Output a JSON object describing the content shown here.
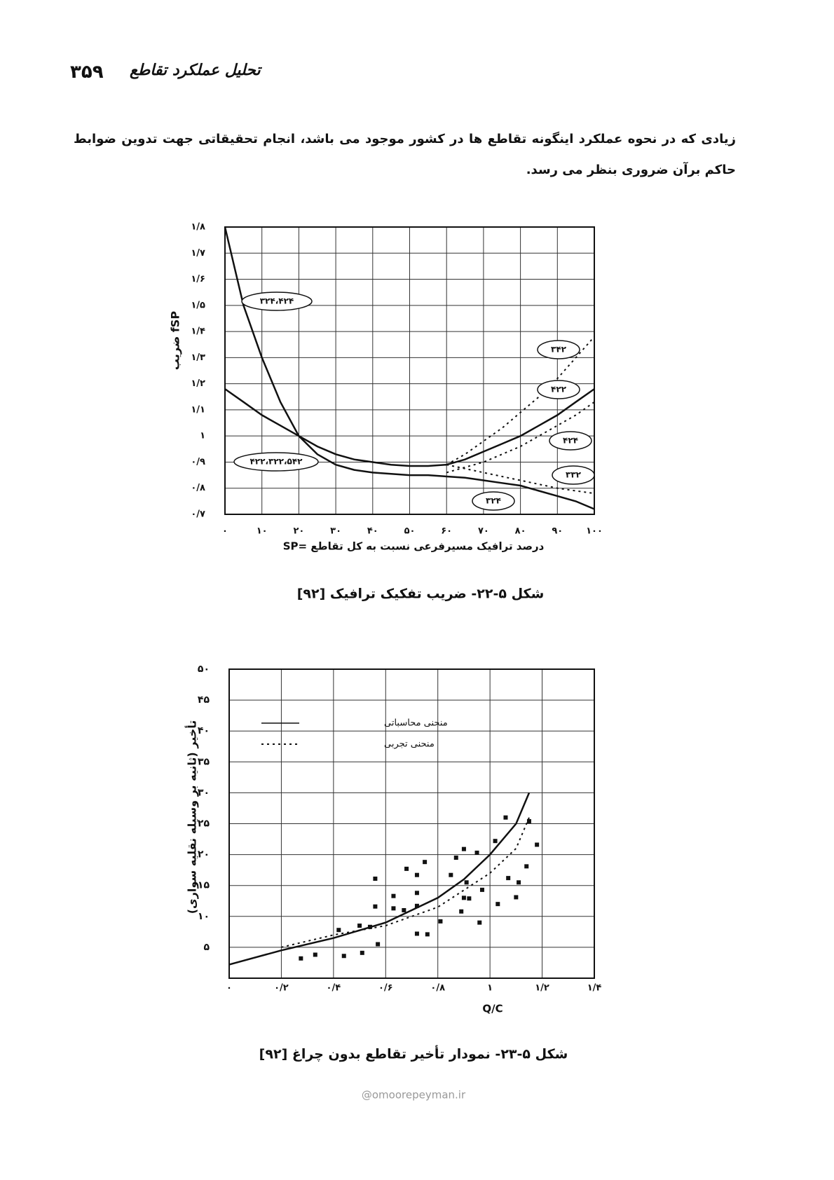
{
  "header": {
    "page_number": "۳۵۹",
    "title": "تحلیل عملکرد تقاطع"
  },
  "paragraph": [
    "زیادی که در نحوه عملکرد اینگونه تقاطع ها در کشور موجود می باشد، انجام تحقیقاتی جهت تدوین ضوابط",
    "حاکم برآن ضروری بنظر می رسد."
  ],
  "chart_data": [
    {
      "type": "line",
      "y_label": "ضریب fSP",
      "x_label": "SP= درصد ترافیک مسیرفرعی نسبت به کل تقاطع",
      "caption": "شکل ۵-۲۲- ضریب تفکیک ترافیک [۹۲]",
      "grid": true,
      "xlim": [
        0,
        100
      ],
      "ylim": [
        0.7,
        1.8
      ],
      "xticks": [
        {
          "value": 0,
          "label": "۰"
        },
        {
          "value": 10,
          "label": "۱۰"
        },
        {
          "value": 20,
          "label": "۲۰"
        },
        {
          "value": 30,
          "label": "۳۰"
        },
        {
          "value": 40,
          "label": "۴۰"
        },
        {
          "value": 50,
          "label": "۵۰"
        },
        {
          "value": 60,
          "label": "۶۰"
        },
        {
          "value": 70,
          "label": "۷۰"
        },
        {
          "value": 80,
          "label": "۸۰"
        },
        {
          "value": 90,
          "label": "۹۰"
        },
        {
          "value": 100,
          "label": "۱۰۰"
        }
      ],
      "yticks": [
        {
          "value": 0.7,
          "label": "۰/۷"
        },
        {
          "value": 0.8,
          "label": "۰/۸"
        },
        {
          "value": 0.9,
          "label": "۰/۹"
        },
        {
          "value": 1,
          "label": "۱"
        },
        {
          "value": 1.1,
          "label": "۱/۱"
        },
        {
          "value": 1.2,
          "label": "۱/۲"
        },
        {
          "value": 1.3,
          "label": "۱/۳"
        },
        {
          "value": 1.4,
          "label": "۱/۴"
        },
        {
          "value": 1.5,
          "label": "۱/۵"
        },
        {
          "value": 1.6,
          "label": "۱/۶"
        },
        {
          "value": 1.7,
          "label": "۱/۷"
        },
        {
          "value": 1.8,
          "label": "۱/۸"
        }
      ],
      "x": [
        0,
        5,
        10,
        15,
        20,
        25,
        30,
        35,
        40,
        45,
        50,
        55,
        60,
        65,
        70,
        75,
        80,
        85,
        90,
        95,
        100
      ],
      "series": [
        {
          "name": "۳۲۴،۴۲۴",
          "color": "#111111",
          "style": "solid",
          "values": [
            1.8,
            1.5,
            1.3,
            1.13,
            1.0,
            0.93,
            0.89,
            0.87,
            0.86,
            0.855,
            0.85,
            0.85,
            0.845,
            null,
            null,
            null,
            null,
            null,
            null,
            null,
            null
          ]
        },
        {
          "name": "۴۲۲،۳۲۲،۵۴۲",
          "color": "#111111",
          "style": "solid",
          "values": [
            1.18,
            1.13,
            1.08,
            1.04,
            1.0,
            0.96,
            0.93,
            0.91,
            0.9,
            0.89,
            0.885,
            0.885,
            0.89,
            null,
            null,
            null,
            null,
            null,
            null,
            null,
            null
          ]
        },
        {
          "name": "۳۴۲",
          "color": "#111111",
          "style": "dotted",
          "values": [
            null,
            null,
            null,
            null,
            null,
            null,
            null,
            null,
            null,
            null,
            null,
            null,
            0.89,
            0.93,
            0.98,
            1.03,
            1.09,
            1.15,
            1.22,
            1.3,
            1.38
          ]
        },
        {
          "name": "۴۲۲",
          "color": "#111111",
          "style": "solid",
          "values": [
            null,
            null,
            null,
            null,
            null,
            null,
            null,
            null,
            null,
            null,
            null,
            null,
            0.89,
            0.91,
            0.94,
            0.97,
            1.0,
            1.04,
            1.08,
            1.13,
            1.18
          ]
        },
        {
          "name": "۴۲۴",
          "color": "#111111",
          "style": "dotted",
          "values": [
            null,
            null,
            null,
            null,
            null,
            null,
            null,
            null,
            null,
            null,
            null,
            null,
            0.86,
            0.88,
            0.9,
            0.93,
            0.96,
            1.0,
            1.04,
            1.08,
            1.13
          ]
        },
        {
          "name": "۳۳۲",
          "color": "#111111",
          "style": "dotted",
          "values": [
            null,
            null,
            null,
            null,
            null,
            null,
            null,
            null,
            null,
            null,
            null,
            null,
            0.89,
            0.875,
            0.86,
            0.845,
            0.83,
            0.815,
            0.8,
            0.79,
            0.78
          ]
        },
        {
          "name": "۳۲۴",
          "color": "#111111",
          "style": "solid",
          "values": [
            null,
            null,
            null,
            null,
            null,
            null,
            null,
            null,
            null,
            null,
            null,
            null,
            0.845,
            0.84,
            0.83,
            0.82,
            0.81,
            0.79,
            0.77,
            0.75,
            0.72
          ]
        }
      ]
    },
    {
      "type": "line",
      "y_label": "تأخیر (ثانیه بر وسیله نقلیه سواری)",
      "x_label": "Q/C",
      "caption": "شکل ۵-۲۳- نمودار تأخیر تقاطع بدون چراغ [۹۲]",
      "grid": true,
      "xlim": [
        0,
        1.4
      ],
      "ylim": [
        0,
        50
      ],
      "xticks": [
        {
          "value": 0,
          "label": "۰"
        },
        {
          "value": 0.2,
          "label": "۰/۲"
        },
        {
          "value": 0.4,
          "label": "۰/۴"
        },
        {
          "value": 0.6,
          "label": "۰/۶"
        },
        {
          "value": 0.8,
          "label": "۰/۸"
        },
        {
          "value": 1,
          "label": "۱"
        },
        {
          "value": 1.2,
          "label": "۱/۲"
        },
        {
          "value": 1.4,
          "label": "۱/۴"
        }
      ],
      "yticks": [
        {
          "value": 5,
          "label": "۵"
        },
        {
          "value": 10,
          "label": "۱۰"
        },
        {
          "value": 15,
          "label": "۱۵"
        },
        {
          "value": 20,
          "label": "۲۰"
        },
        {
          "value": 25,
          "label": "۲۵"
        },
        {
          "value": 30,
          "label": "۳۰"
        },
        {
          "value": 35,
          "label": "۳۵"
        },
        {
          "value": 40,
          "label": "۴۰"
        },
        {
          "value": 45,
          "label": "۴۵"
        },
        {
          "value": 50,
          "label": "۵۰"
        }
      ],
      "series": [
        {
          "name": "منحنی محاسباتی",
          "color": "#111111",
          "style": "solid",
          "x": [
            0,
            0.2,
            0.4,
            0.6,
            0.8,
            0.9,
            1.0,
            1.1,
            1.15
          ],
          "values": [
            2.2,
            4.5,
            6.5,
            9,
            13,
            16,
            20,
            25,
            30
          ]
        },
        {
          "name": "منحنی تجربی",
          "color": "#111111",
          "style": "dotted",
          "x": [
            0.2,
            0.4,
            0.6,
            0.8,
            1.0,
            1.1,
            1.15
          ],
          "values": [
            5,
            7,
            8.5,
            11.5,
            17,
            21,
            26
          ]
        },
        {
          "color": "#111111",
          "style": "markers",
          "x": [
            0.275,
            0.33,
            0.42,
            0.44,
            0.5,
            0.51,
            0.54,
            0.56,
            0.56,
            0.57,
            0.63,
            0.63,
            0.67,
            0.68,
            0.72,
            0.72,
            0.72,
            0.72,
            0.75,
            0.76,
            0.81,
            0.85,
            0.87,
            0.89,
            0.9,
            0.9,
            0.91,
            0.92,
            0.95,
            0.96,
            0.97,
            1.02,
            1.03,
            1.06,
            1.07,
            1.1,
            1.11,
            1.14,
            1.15,
            1.18
          ],
          "values": [
            3.2,
            3.8,
            7.8,
            3.6,
            8.5,
            4.1,
            8.3,
            11.6,
            16.1,
            5.5,
            13.3,
            11.3,
            11.0,
            17.7,
            13.8,
            11.7,
            16.7,
            7.2,
            18.8,
            7.1,
            9.2,
            16.7,
            19.5,
            10.8,
            13.0,
            20.9,
            15.5,
            12.9,
            20.3,
            9.0,
            14.3,
            22.2,
            12.0,
            26.0,
            16.2,
            13.1,
            15.5,
            18.1,
            25.4,
            21.6
          ]
        }
      ]
    }
  ],
  "watermark": "@omoorepeyman.ir"
}
